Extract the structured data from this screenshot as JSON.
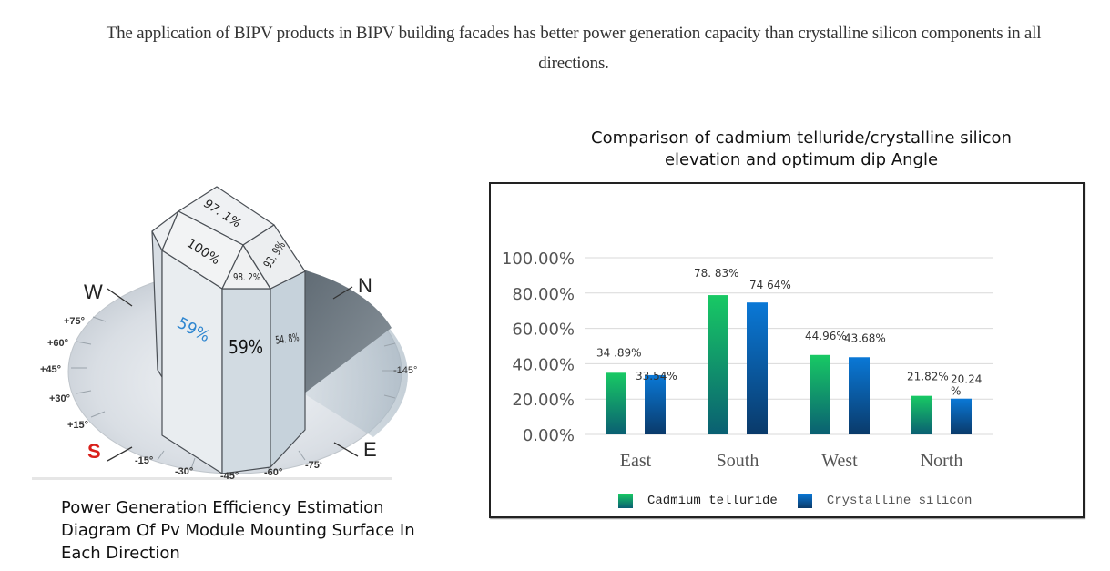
{
  "headline": {
    "line1": "The application of BIPV products in BIPV building facades has better power generation capacity than crystalline silicon components in all",
    "line2": "directions."
  },
  "diagram": {
    "caption_lines": [
      "Power Generation Efficiency Estimation",
      "Diagram Of Pv Module Mounting Surface In",
      "Each Direction"
    ],
    "compass": {
      "w": "W",
      "n": "N",
      "s": "S",
      "e": "E"
    },
    "angle_labels": {
      "p75": "+75°",
      "p60": "+60°",
      "p45": "+45°",
      "p30": "+30°",
      "p15": "+15°",
      "m15": "-15°",
      "m30": "-30°",
      "m45": "-45°",
      "m60": "-60°",
      "m75": "-75‘",
      "m145": "-145°"
    },
    "face_values": {
      "roof_top": "97. 1%",
      "roof_west": "100%",
      "roof_south": "98. 2%",
      "roof_east": "93. 9%",
      "wall_west": "59%",
      "wall_south": "59%",
      "wall_east": "54. 8%"
    },
    "colors": {
      "s_label": "#d9201b",
      "wall_west_text": "#2e86d0"
    }
  },
  "chart_data": {
    "type": "bar",
    "title_lines": [
      "Comparison of cadmium telluride/crystalline silicon",
      "elevation and optimum dip Angle"
    ],
    "categories": [
      "East",
      "South",
      "West",
      "North"
    ],
    "series": [
      {
        "name": "Cadmium telluride",
        "values": [
          34.89,
          78.83,
          44.96,
          21.82
        ],
        "labels": [
          "34 .89%",
          "78. 83%",
          "44.96%",
          "21.82%"
        ],
        "color_top": "#18c964",
        "color_bottom": "#0a5f72"
      },
      {
        "name": "Crystalline silicon",
        "values": [
          33.54,
          74.64,
          43.68,
          20.24
        ],
        "labels": [
          "33.54%",
          "74 64%",
          "43.68%",
          "20.24 %"
        ],
        "color_top": "#0a78d6",
        "color_bottom": "#0a3a6a"
      }
    ],
    "yticks": [
      "0.00%",
      "20.00%",
      "40.00%",
      "60.00%",
      "80.00%",
      "100.00%"
    ],
    "ylim": [
      0,
      100
    ],
    "xlabel": "",
    "ylabel": "",
    "grid": true,
    "legend_position": "bottom"
  }
}
